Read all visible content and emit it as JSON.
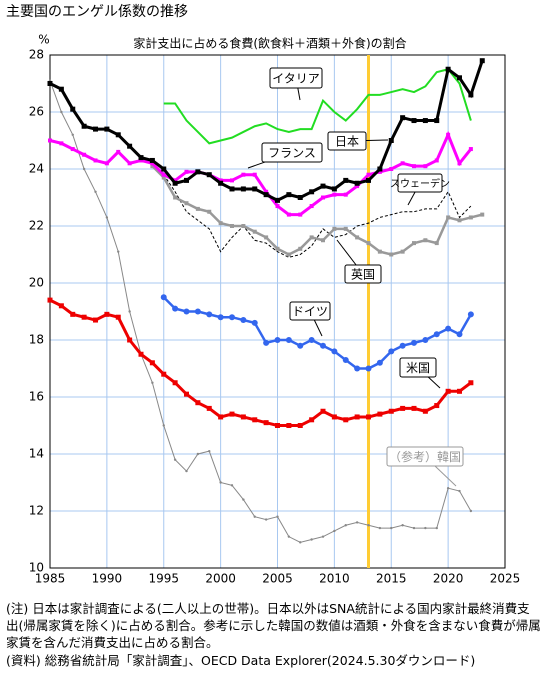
{
  "chart_data": {
    "type": "line",
    "title": "主要国のエンゲル係数の推移",
    "subtitle": "家計支出に占める食費(飲食料＋酒類＋外食)の割合",
    "ylabel": "%",
    "x": [
      1985,
      1986,
      1987,
      1988,
      1989,
      1990,
      1991,
      1992,
      1993,
      1994,
      1995,
      1996,
      1997,
      1998,
      1999,
      2000,
      2001,
      2002,
      2003,
      2004,
      2005,
      2006,
      2007,
      2008,
      2009,
      2010,
      2011,
      2012,
      2013,
      2014,
      2015,
      2016,
      2017,
      2018,
      2019,
      2020,
      2021,
      2022,
      2023
    ],
    "xlim": [
      1985,
      2025
    ],
    "xticks": [
      1985,
      1990,
      1995,
      2000,
      2005,
      2010,
      2015,
      2020,
      2025
    ],
    "ylim": [
      10,
      28
    ],
    "yticks": [
      10,
      12,
      14,
      16,
      18,
      20,
      22,
      24,
      26,
      28
    ],
    "grid": true,
    "marker_year": 2013,
    "series": [
      {
        "name": "日本",
        "color": "#000000",
        "values": [
          27.0,
          26.8,
          26.1,
          25.5,
          25.4,
          25.4,
          25.2,
          24.8,
          24.4,
          24.3,
          24.0,
          23.5,
          23.6,
          23.9,
          23.8,
          23.5,
          23.3,
          23.3,
          23.3,
          23.1,
          22.9,
          23.1,
          23.0,
          23.2,
          23.4,
          23.3,
          23.6,
          23.5,
          23.6,
          24.0,
          25.0,
          25.8,
          25.7,
          25.7,
          25.7,
          27.5,
          27.2,
          26.6,
          27.8
        ]
      },
      {
        "name": "イタリア",
        "color": "#22dd22",
        "values": [
          null,
          null,
          null,
          null,
          null,
          null,
          null,
          null,
          null,
          null,
          26.3,
          26.3,
          25.7,
          25.3,
          24.9,
          25.0,
          25.1,
          25.3,
          25.5,
          25.6,
          25.4,
          25.3,
          25.4,
          25.4,
          26.4,
          26.0,
          25.7,
          26.1,
          26.6,
          26.6,
          26.7,
          26.8,
          26.7,
          26.9,
          27.4,
          27.5,
          27.0,
          25.7,
          null
        ]
      },
      {
        "name": "フランス",
        "color": "#ff00ff",
        "values": [
          25.0,
          24.9,
          24.7,
          24.5,
          24.3,
          24.2,
          24.6,
          24.2,
          24.3,
          24.2,
          23.8,
          23.6,
          23.9,
          23.9,
          23.8,
          23.6,
          23.6,
          23.8,
          23.8,
          23.2,
          22.7,
          22.4,
          22.4,
          22.7,
          23.0,
          23.1,
          23.1,
          23.4,
          23.8,
          23.9,
          24.0,
          24.2,
          24.1,
          24.1,
          24.3,
          25.2,
          24.2,
          24.7,
          null
        ]
      },
      {
        "name": "スウェーデン",
        "color": "#000000",
        "values": [
          null,
          null,
          null,
          null,
          null,
          null,
          null,
          null,
          null,
          null,
          23.8,
          23.2,
          22.5,
          22.2,
          21.9,
          21.1,
          21.6,
          22.0,
          21.5,
          21.4,
          21.1,
          20.9,
          21.0,
          21.3,
          21.9,
          21.6,
          21.7,
          22.0,
          22.1,
          22.3,
          22.4,
          22.5,
          22.5,
          22.6,
          22.6,
          23.2,
          22.3,
          22.7,
          null
        ]
      },
      {
        "name": "英国",
        "color": "#999999",
        "values": [
          null,
          null,
          null,
          null,
          null,
          null,
          null,
          null,
          null,
          24.1,
          23.7,
          23.0,
          22.8,
          22.6,
          22.5,
          22.1,
          22.0,
          22.0,
          21.8,
          21.6,
          21.2,
          21.0,
          21.2,
          21.6,
          21.5,
          21.9,
          21.9,
          21.6,
          21.4,
          21.1,
          21.0,
          21.1,
          21.4,
          21.5,
          21.4,
          22.3,
          22.2,
          22.3,
          22.4
        ]
      },
      {
        "name": "ドイツ",
        "color": "#3366ee",
        "values": [
          null,
          null,
          null,
          null,
          null,
          null,
          null,
          null,
          null,
          null,
          19.5,
          19.1,
          19.0,
          19.0,
          18.9,
          18.8,
          18.8,
          18.7,
          18.6,
          17.9,
          18.0,
          18.0,
          17.8,
          18.0,
          17.8,
          17.6,
          17.3,
          17.0,
          17.0,
          17.2,
          17.6,
          17.8,
          17.9,
          18.0,
          18.2,
          18.4,
          18.2,
          18.9,
          null
        ]
      },
      {
        "name": "米国",
        "color": "#ee0000",
        "values": [
          19.4,
          19.2,
          18.9,
          18.8,
          18.7,
          18.9,
          18.8,
          18.0,
          17.5,
          17.2,
          16.8,
          16.5,
          16.1,
          15.8,
          15.6,
          15.3,
          15.4,
          15.3,
          15.2,
          15.1,
          15.0,
          15.0,
          15.0,
          15.2,
          15.5,
          15.3,
          15.2,
          15.3,
          15.3,
          15.4,
          15.5,
          15.6,
          15.6,
          15.5,
          15.7,
          16.2,
          16.2,
          16.5,
          null
        ]
      },
      {
        "name": "（参考）韓国",
        "color": "#888888",
        "values": [
          27.1,
          26.0,
          25.2,
          24.0,
          23.2,
          22.3,
          21.1,
          19.0,
          17.5,
          16.5,
          15.0,
          13.8,
          13.4,
          14.0,
          14.1,
          13.0,
          12.9,
          12.4,
          11.8,
          11.7,
          11.8,
          11.1,
          10.9,
          11.0,
          11.1,
          11.3,
          11.5,
          11.6,
          11.5,
          11.4,
          11.4,
          11.5,
          11.4,
          11.4,
          11.4,
          12.8,
          12.7,
          12.0,
          null
        ]
      }
    ]
  },
  "notes": [
    "(注) 日本は家計調査による(二人以上の世帯)。日本以外はSNA統計による国内家計最終消費支出(帰属家賃を除く)に占める割合。参考に示した韓国の数値は酒類・外食を含まない食費が帰属家賃を含んだ消費支出に占める割合。",
    "(資料) 総務省統計局「家計調査」、OECD Data Explorer(2024.5.30ダウンロード)"
  ]
}
